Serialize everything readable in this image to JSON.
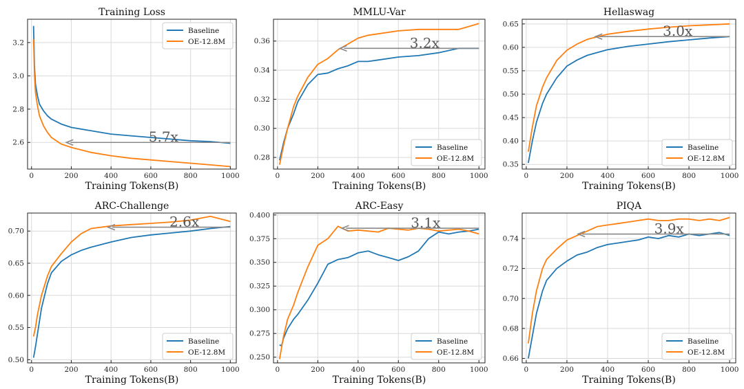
{
  "colors": {
    "baseline": "#1f77b4",
    "oe": "#ff7f0e",
    "arrow": "#888888",
    "grid": "#d9d9d9"
  },
  "chart_data": [
    {
      "type": "line",
      "title": "Training Loss",
      "xlabel": "Training Tokens(B)",
      "ylabel": "",
      "xlim": [
        -20,
        1030
      ],
      "ylim": [
        2.44,
        3.34
      ],
      "xticks": [
        0,
        200,
        400,
        600,
        800,
        1000
      ],
      "yticks": [
        2.6,
        2.8,
        3.0,
        3.2
      ],
      "grid": true,
      "legend_position": "upper-right",
      "speedup": {
        "label": "5.7x",
        "from_x": 1000,
        "to_x": 175,
        "y": 2.6
      },
      "series": [
        {
          "name": "Baseline",
          "color": "#1f77b4",
          "x": [
            10,
            15,
            20,
            30,
            40,
            60,
            80,
            100,
            150,
            200,
            300,
            400,
            500,
            600,
            700,
            800,
            900,
            1000
          ],
          "y": [
            3.3,
            3.05,
            2.95,
            2.88,
            2.83,
            2.79,
            2.76,
            2.74,
            2.71,
            2.69,
            2.67,
            2.65,
            2.64,
            2.63,
            2.62,
            2.61,
            2.605,
            2.595
          ]
        },
        {
          "name": "OE-12.8M",
          "color": "#ff7f0e",
          "x": [
            10,
            15,
            20,
            30,
            40,
            60,
            80,
            100,
            150,
            200,
            300,
            400,
            500,
            600,
            700,
            800,
            900,
            1000
          ],
          "y": [
            3.22,
            3.0,
            2.9,
            2.82,
            2.76,
            2.7,
            2.66,
            2.63,
            2.59,
            2.57,
            2.54,
            2.52,
            2.505,
            2.495,
            2.485,
            2.475,
            2.465,
            2.455
          ]
        }
      ]
    },
    {
      "type": "line",
      "title": "MMLU-Var",
      "xlabel": "Training Tokens(B)",
      "ylabel": "",
      "xlim": [
        -20,
        1030
      ],
      "ylim": [
        0.272,
        0.375
      ],
      "xticks": [
        0,
        200,
        400,
        600,
        800,
        1000
      ],
      "yticks": [
        0.28,
        0.3,
        0.32,
        0.34,
        0.36
      ],
      "grid": true,
      "legend_position": "lower-right",
      "speedup": {
        "label": "3.2x",
        "from_x": 1000,
        "to_x": 310,
        "y": 0.355
      },
      "series": [
        {
          "name": "Baseline",
          "color": "#1f77b4",
          "x": [
            10,
            30,
            50,
            80,
            100,
            150,
            200,
            250,
            300,
            350,
            400,
            450,
            500,
            600,
            700,
            800,
            900,
            1000
          ],
          "y": [
            0.278,
            0.29,
            0.3,
            0.31,
            0.318,
            0.33,
            0.337,
            0.338,
            0.341,
            0.343,
            0.346,
            0.346,
            0.347,
            0.349,
            0.35,
            0.352,
            0.355,
            0.355
          ]
        },
        {
          "name": "OE-12.8M",
          "color": "#ff7f0e",
          "x": [
            10,
            30,
            50,
            80,
            100,
            150,
            200,
            250,
            300,
            350,
            400,
            450,
            500,
            600,
            700,
            800,
            900,
            1000
          ],
          "y": [
            0.275,
            0.288,
            0.3,
            0.315,
            0.322,
            0.335,
            0.344,
            0.348,
            0.354,
            0.358,
            0.362,
            0.364,
            0.365,
            0.367,
            0.368,
            0.368,
            0.368,
            0.372
          ]
        }
      ]
    },
    {
      "type": "line",
      "title": "Hellaswag",
      "xlabel": "Training Tokens(B)",
      "ylabel": "",
      "xlim": [
        -20,
        1030
      ],
      "ylim": [
        0.34,
        0.66
      ],
      "xticks": [
        0,
        200,
        400,
        600,
        800,
        1000
      ],
      "yticks": [
        0.35,
        0.4,
        0.45,
        0.5,
        0.55,
        0.6,
        0.65
      ],
      "grid": true,
      "legend_position": "lower-right",
      "speedup": {
        "label": "3.0x",
        "from_x": 1000,
        "to_x": 340,
        "y": 0.623
      },
      "series": [
        {
          "name": "Baseline",
          "color": "#1f77b4",
          "x": [
            10,
            30,
            50,
            80,
            100,
            150,
            200,
            250,
            300,
            400,
            500,
            600,
            700,
            800,
            900,
            1000
          ],
          "y": [
            0.353,
            0.4,
            0.44,
            0.48,
            0.5,
            0.535,
            0.56,
            0.573,
            0.583,
            0.595,
            0.602,
            0.607,
            0.612,
            0.616,
            0.62,
            0.623
          ]
        },
        {
          "name": "OE-12.8M",
          "color": "#ff7f0e",
          "x": [
            10,
            30,
            50,
            80,
            100,
            150,
            200,
            250,
            300,
            400,
            500,
            600,
            700,
            800,
            900,
            1000
          ],
          "y": [
            0.377,
            0.43,
            0.475,
            0.515,
            0.535,
            0.572,
            0.594,
            0.607,
            0.617,
            0.628,
            0.634,
            0.639,
            0.643,
            0.646,
            0.648,
            0.65
          ]
        }
      ]
    },
    {
      "type": "line",
      "title": "ARC-Challenge",
      "xlabel": "Training Tokens(B)",
      "ylabel": "",
      "xlim": [
        -20,
        1030
      ],
      "ylim": [
        0.495,
        0.728
      ],
      "xticks": [
        0,
        200,
        400,
        600,
        800,
        1000
      ],
      "yticks": [
        0.5,
        0.55,
        0.6,
        0.65,
        0.7
      ],
      "grid": true,
      "legend_position": "lower-right",
      "speedup": {
        "label": "2.6x",
        "from_x": 1000,
        "to_x": 385,
        "y": 0.706
      },
      "series": [
        {
          "name": "Baseline",
          "color": "#1f77b4",
          "x": [
            10,
            20,
            30,
            50,
            80,
            100,
            150,
            200,
            250,
            300,
            400,
            500,
            600,
            700,
            800,
            900,
            1000
          ],
          "y": [
            0.503,
            0.52,
            0.54,
            0.58,
            0.618,
            0.635,
            0.653,
            0.663,
            0.67,
            0.675,
            0.683,
            0.69,
            0.694,
            0.697,
            0.7,
            0.704,
            0.707
          ]
        },
        {
          "name": "OE-12.8M",
          "color": "#ff7f0e",
          "x": [
            10,
            20,
            30,
            50,
            80,
            100,
            150,
            200,
            250,
            300,
            400,
            500,
            600,
            700,
            800,
            900,
            1000
          ],
          "y": [
            0.536,
            0.55,
            0.57,
            0.6,
            0.63,
            0.645,
            0.665,
            0.683,
            0.696,
            0.704,
            0.708,
            0.71,
            0.712,
            0.714,
            0.717,
            0.723,
            0.715
          ]
        }
      ]
    },
    {
      "type": "line",
      "title": "ARC-Easy",
      "xlabel": "Training Tokens(B)",
      "ylabel": "",
      "xlim": [
        -20,
        1030
      ],
      "ylim": [
        0.244,
        0.402
      ],
      "xticks": [
        0,
        200,
        400,
        600,
        800,
        1000
      ],
      "yticks": [
        0.25,
        0.275,
        0.3,
        0.325,
        0.35,
        0.375,
        0.4
      ],
      "grid": true,
      "legend_position": "lower-right",
      "speedup": {
        "label": "3.1x",
        "from_x": 1000,
        "to_x": 320,
        "y": 0.386
      },
      "series": [
        {
          "name": "Baseline",
          "color": "#1f77b4",
          "x": [
            10,
            20,
            30,
            50,
            80,
            100,
            150,
            200,
            250,
            300,
            350,
            400,
            450,
            500,
            550,
            600,
            650,
            700,
            750,
            800,
            850,
            900,
            950,
            1000
          ],
          "y": [
            0.263,
            0.262,
            0.27,
            0.28,
            0.29,
            0.295,
            0.31,
            0.328,
            0.348,
            0.353,
            0.355,
            0.36,
            0.362,
            0.358,
            0.355,
            0.352,
            0.356,
            0.362,
            0.375,
            0.382,
            0.38,
            0.382,
            0.383,
            0.385
          ]
        },
        {
          "name": "OE-12.8M",
          "color": "#ff7f0e",
          "x": [
            10,
            20,
            30,
            50,
            80,
            100,
            150,
            200,
            250,
            300,
            350,
            400,
            450,
            500,
            550,
            600,
            650,
            700,
            750,
            800,
            850,
            900,
            950,
            1000
          ],
          "y": [
            0.248,
            0.26,
            0.272,
            0.29,
            0.305,
            0.318,
            0.345,
            0.368,
            0.375,
            0.388,
            0.383,
            0.384,
            0.383,
            0.382,
            0.386,
            0.385,
            0.384,
            0.386,
            0.385,
            0.383,
            0.384,
            0.385,
            0.383,
            0.38
          ]
        }
      ]
    },
    {
      "type": "line",
      "title": "PIQA",
      "xlabel": "Training Tokens(B)",
      "ylabel": "",
      "xlim": [
        -20,
        1030
      ],
      "ylim": [
        0.657,
        0.757
      ],
      "xticks": [
        0,
        200,
        400,
        600,
        800,
        1000
      ],
      "yticks": [
        0.66,
        0.68,
        0.7,
        0.72,
        0.74
      ],
      "grid": true,
      "legend_position": "lower-right",
      "speedup": {
        "label": "3.9x",
        "from_x": 1000,
        "to_x": 255,
        "y": 0.743
      },
      "series": [
        {
          "name": "Baseline",
          "color": "#1f77b4",
          "x": [
            10,
            30,
            50,
            80,
            100,
            150,
            200,
            250,
            300,
            350,
            400,
            450,
            500,
            550,
            600,
            650,
            700,
            750,
            800,
            850,
            900,
            950,
            1000
          ],
          "y": [
            0.66,
            0.675,
            0.69,
            0.705,
            0.712,
            0.72,
            0.725,
            0.729,
            0.731,
            0.734,
            0.736,
            0.737,
            0.738,
            0.739,
            0.741,
            0.74,
            0.742,
            0.741,
            0.743,
            0.742,
            0.743,
            0.744,
            0.742
          ]
        },
        {
          "name": "OE-12.8M",
          "color": "#ff7f0e",
          "x": [
            10,
            30,
            50,
            80,
            100,
            150,
            200,
            250,
            300,
            350,
            400,
            450,
            500,
            550,
            600,
            650,
            700,
            750,
            800,
            850,
            900,
            950,
            1000
          ],
          "y": [
            0.67,
            0.69,
            0.705,
            0.72,
            0.726,
            0.733,
            0.739,
            0.742,
            0.745,
            0.748,
            0.749,
            0.75,
            0.751,
            0.752,
            0.753,
            0.752,
            0.752,
            0.753,
            0.753,
            0.752,
            0.753,
            0.752,
            0.754
          ]
        }
      ]
    }
  ]
}
